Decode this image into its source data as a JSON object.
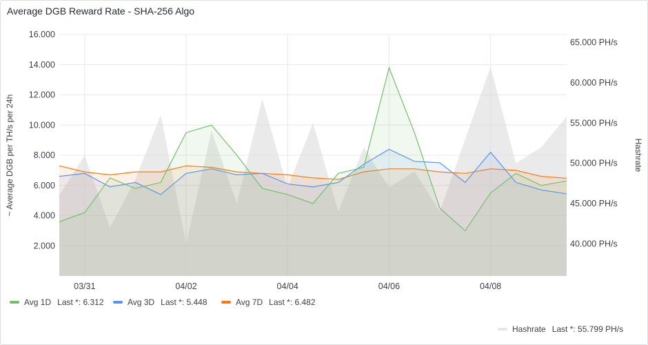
{
  "panel": {
    "title": "Average DGB Reward Rate - SHA-256 Algo"
  },
  "chart_data": {
    "type": "line",
    "x": [
      "03/30 12:00",
      "03/31 00:00",
      "03/31 12:00",
      "04/01 00:00",
      "04/01 12:00",
      "04/02 00:00",
      "04/02 12:00",
      "04/03 00:00",
      "04/03 12:00",
      "04/04 00:00",
      "04/04 12:00",
      "04/05 00:00",
      "04/05 12:00",
      "04/06 00:00",
      "04/06 12:00",
      "04/07 00:00",
      "04/07 12:00",
      "04/08 00:00",
      "04/08 12:00",
      "04/09 00:00",
      "04/09 12:00"
    ],
    "x_ticks": [
      "03/31",
      "04/02",
      "04/04",
      "04/06",
      "04/08"
    ],
    "x_tick_index": [
      1,
      5,
      9,
      13,
      17
    ],
    "ylabel": "~ Average DGB per TH/s per 24h",
    "ylabel_right": "Hashrate",
    "ylim": [
      0,
      16
    ],
    "ylim_right": [
      36,
      66
    ],
    "y_ticks": [
      "2.000",
      "4.000",
      "6.000",
      "8.000",
      "10.000",
      "12.000",
      "14.000",
      "16.000"
    ],
    "y_tick_values": [
      2,
      4,
      6,
      8,
      10,
      12,
      14,
      16
    ],
    "y_ticks_right": [
      "40.000 PH/s",
      "45.000 PH/s",
      "50.000 PH/s",
      "55.000 PH/s",
      "60.000 PH/s",
      "65.000 PH/s"
    ],
    "y_tick_values_right": [
      40,
      45,
      50,
      55,
      60,
      65
    ],
    "grid": true,
    "legend_position": "bottom",
    "series": [
      {
        "name": "Avg 1D",
        "axis": "left",
        "color": "#73bf69",
        "last_label": "Last *: 6.312",
        "values": [
          3.6,
          4.2,
          6.5,
          5.8,
          6.2,
          9.5,
          10.0,
          8.0,
          5.8,
          5.4,
          4.8,
          6.8,
          7.2,
          13.8,
          9.5,
          4.5,
          3.0,
          5.5,
          6.8,
          6.0,
          6.3
        ]
      },
      {
        "name": "Avg 3D",
        "axis": "left",
        "color": "#5794f2",
        "last_label": "Last *: 5.448",
        "values": [
          6.6,
          6.8,
          5.9,
          6.2,
          5.4,
          6.8,
          7.1,
          6.7,
          6.8,
          6.1,
          5.9,
          6.2,
          7.4,
          8.4,
          7.6,
          7.5,
          6.2,
          8.2,
          6.2,
          5.7,
          5.45
        ]
      },
      {
        "name": "Avg 7D",
        "axis": "left",
        "color": "#ff780a",
        "last_label": "Last *: 6.482",
        "values": [
          7.3,
          6.9,
          6.7,
          6.9,
          6.9,
          7.3,
          7.2,
          6.9,
          6.8,
          6.7,
          6.5,
          6.4,
          6.9,
          7.1,
          7.1,
          6.9,
          6.8,
          7.1,
          7.0,
          6.6,
          6.48
        ]
      },
      {
        "name": "Hashrate",
        "axis": "right",
        "color": "#c7c7c7",
        "last_label": "Last *: 55.799 PH/s",
        "values": [
          46.0,
          51.0,
          42.0,
          48.0,
          56.0,
          40.0,
          54.0,
          45.0,
          58.0,
          47.0,
          55.0,
          44.0,
          52.0,
          47.0,
          49.0,
          44.0,
          53.0,
          62.0,
          50.0,
          52.0,
          55.8
        ]
      }
    ]
  }
}
